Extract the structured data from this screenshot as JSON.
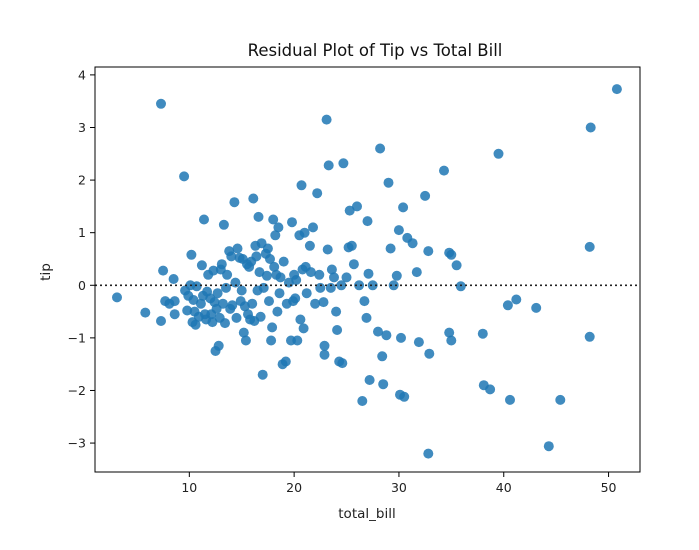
{
  "chart_data": {
    "type": "scatter",
    "title": "Residual Plot of Tip vs Total Bill",
    "xlabel": "total_bill",
    "ylabel": "tip",
    "xlim": [
      1.0,
      53.0
    ],
    "ylim": [
      -3.55,
      4.15
    ],
    "xticks": [
      10,
      20,
      30,
      40,
      50
    ],
    "yticks": [
      -3,
      -2,
      -1,
      0,
      1,
      2,
      3,
      4
    ],
    "reference_line": {
      "y": 0,
      "style": "dotted",
      "color": "#222222"
    },
    "grid": false,
    "marker_color": "#1f77b4",
    "points": [
      [
        3.1,
        -0.23
      ],
      [
        5.8,
        -0.52
      ],
      [
        7.3,
        3.45
      ],
      [
        7.3,
        -0.68
      ],
      [
        7.5,
        0.28
      ],
      [
        7.7,
        -0.3
      ],
      [
        8.1,
        -0.35
      ],
      [
        8.5,
        0.12
      ],
      [
        8.6,
        -0.3
      ],
      [
        8.6,
        -0.55
      ],
      [
        9.5,
        2.07
      ],
      [
        9.6,
        -0.1
      ],
      [
        9.8,
        -0.48
      ],
      [
        9.9,
        -0.2
      ],
      [
        10.1,
        0.0
      ],
      [
        10.2,
        0.58
      ],
      [
        10.3,
        -0.7
      ],
      [
        10.4,
        -0.28
      ],
      [
        10.5,
        -0.5
      ],
      [
        10.6,
        -0.75
      ],
      [
        10.7,
        -0.02
      ],
      [
        10.9,
        -0.6
      ],
      [
        11.1,
        -0.35
      ],
      [
        11.2,
        0.38
      ],
      [
        11.3,
        -0.2
      ],
      [
        11.4,
        1.25
      ],
      [
        11.5,
        -0.55
      ],
      [
        11.6,
        -0.65
      ],
      [
        11.7,
        -0.12
      ],
      [
        11.8,
        0.2
      ],
      [
        12.0,
        -0.25
      ],
      [
        12.1,
        -0.55
      ],
      [
        12.2,
        -0.7
      ],
      [
        12.3,
        0.28
      ],
      [
        12.4,
        -0.32
      ],
      [
        12.5,
        -1.25
      ],
      [
        12.6,
        -0.45
      ],
      [
        12.7,
        -0.15
      ],
      [
        12.8,
        -1.15
      ],
      [
        12.9,
        -0.62
      ],
      [
        13.0,
        0.3
      ],
      [
        13.1,
        0.4
      ],
      [
        13.2,
        -0.35
      ],
      [
        13.3,
        1.15
      ],
      [
        13.4,
        -0.72
      ],
      [
        13.5,
        -0.05
      ],
      [
        13.6,
        0.2
      ],
      [
        13.8,
        0.65
      ],
      [
        13.9,
        -0.45
      ],
      [
        14.0,
        0.55
      ],
      [
        14.1,
        -0.38
      ],
      [
        14.3,
        1.58
      ],
      [
        14.4,
        0.05
      ],
      [
        14.5,
        -0.62
      ],
      [
        14.6,
        0.7
      ],
      [
        14.8,
        0.52
      ],
      [
        14.9,
        -0.3
      ],
      [
        15.0,
        -0.1
      ],
      [
        15.1,
        0.5
      ],
      [
        15.2,
        -0.9
      ],
      [
        15.3,
        -0.4
      ],
      [
        15.4,
        -1.05
      ],
      [
        15.5,
        0.4
      ],
      [
        15.6,
        -0.55
      ],
      [
        15.7,
        0.35
      ],
      [
        15.8,
        -0.65
      ],
      [
        15.9,
        0.45
      ],
      [
        16.0,
        -0.35
      ],
      [
        16.1,
        1.65
      ],
      [
        16.2,
        -0.68
      ],
      [
        16.3,
        0.75
      ],
      [
        16.4,
        0.55
      ],
      [
        16.5,
        -0.1
      ],
      [
        16.6,
        1.3
      ],
      [
        16.7,
        0.25
      ],
      [
        16.8,
        -0.6
      ],
      [
        16.9,
        0.8
      ],
      [
        17.0,
        -1.7
      ],
      [
        17.1,
        -0.05
      ],
      [
        17.3,
        0.6
      ],
      [
        17.4,
        0.18
      ],
      [
        17.5,
        0.7
      ],
      [
        17.6,
        -0.3
      ],
      [
        17.7,
        0.5
      ],
      [
        17.8,
        -1.05
      ],
      [
        17.9,
        -0.8
      ],
      [
        18.0,
        1.25
      ],
      [
        18.1,
        0.35
      ],
      [
        18.2,
        0.95
      ],
      [
        18.3,
        0.2
      ],
      [
        18.4,
        -0.5
      ],
      [
        18.5,
        1.1
      ],
      [
        18.6,
        -0.15
      ],
      [
        18.7,
        0.15
      ],
      [
        18.9,
        -1.5
      ],
      [
        19.0,
        0.45
      ],
      [
        19.2,
        -1.45
      ],
      [
        19.3,
        -0.35
      ],
      [
        19.5,
        0.05
      ],
      [
        19.7,
        -1.05
      ],
      [
        19.8,
        1.2
      ],
      [
        19.9,
        -0.3
      ],
      [
        20.0,
        0.2
      ],
      [
        20.1,
        -0.25
      ],
      [
        20.2,
        0.1
      ],
      [
        20.3,
        -1.05
      ],
      [
        20.5,
        0.95
      ],
      [
        20.6,
        -0.65
      ],
      [
        20.7,
        1.9
      ],
      [
        20.8,
        0.3
      ],
      [
        20.9,
        -0.82
      ],
      [
        21.0,
        1.0
      ],
      [
        21.1,
        0.35
      ],
      [
        21.2,
        -0.15
      ],
      [
        21.5,
        0.75
      ],
      [
        21.6,
        0.25
      ],
      [
        21.8,
        1.1
      ],
      [
        22.0,
        -0.35
      ],
      [
        22.2,
        1.75
      ],
      [
        22.4,
        0.2
      ],
      [
        22.5,
        -0.05
      ],
      [
        22.8,
        -0.32
      ],
      [
        22.9,
        -1.15
      ],
      [
        22.9,
        -1.32
      ],
      [
        23.1,
        3.15
      ],
      [
        23.2,
        0.68
      ],
      [
        23.3,
        2.28
      ],
      [
        23.5,
        -0.05
      ],
      [
        23.6,
        0.3
      ],
      [
        23.8,
        0.15
      ],
      [
        24.0,
        -0.5
      ],
      [
        24.1,
        -0.85
      ],
      [
        24.3,
        -1.45
      ],
      [
        24.5,
        0.0
      ],
      [
        24.6,
        -1.48
      ],
      [
        24.7,
        2.32
      ],
      [
        25.0,
        0.15
      ],
      [
        25.2,
        0.72
      ],
      [
        25.3,
        1.42
      ],
      [
        25.5,
        0.75
      ],
      [
        25.7,
        0.4
      ],
      [
        26.0,
        1.5
      ],
      [
        26.2,
        0.0
      ],
      [
        26.5,
        -2.2
      ],
      [
        26.7,
        -0.3
      ],
      [
        26.9,
        -0.62
      ],
      [
        27.0,
        1.22
      ],
      [
        27.1,
        0.22
      ],
      [
        27.2,
        -1.8
      ],
      [
        27.5,
        0.0
      ],
      [
        28.0,
        -0.88
      ],
      [
        28.2,
        2.6
      ],
      [
        28.4,
        -1.35
      ],
      [
        28.5,
        -1.88
      ],
      [
        28.8,
        -0.95
      ],
      [
        29.0,
        1.95
      ],
      [
        29.2,
        0.7
      ],
      [
        29.5,
        0.0
      ],
      [
        29.8,
        0.18
      ],
      [
        30.0,
        1.05
      ],
      [
        30.1,
        -2.08
      ],
      [
        30.2,
        -1.0
      ],
      [
        30.4,
        1.48
      ],
      [
        30.5,
        -2.12
      ],
      [
        30.8,
        0.9
      ],
      [
        31.3,
        0.8
      ],
      [
        31.7,
        0.25
      ],
      [
        31.9,
        -1.08
      ],
      [
        32.5,
        1.7
      ],
      [
        32.8,
        0.65
      ],
      [
        32.9,
        -1.3
      ],
      [
        32.8,
        -3.2
      ],
      [
        34.3,
        2.18
      ],
      [
        34.8,
        0.62
      ],
      [
        34.8,
        -0.9
      ],
      [
        35.0,
        -1.05
      ],
      [
        35.0,
        0.58
      ],
      [
        35.5,
        0.38
      ],
      [
        35.9,
        -0.02
      ],
      [
        38.0,
        -0.92
      ],
      [
        38.1,
        -1.9
      ],
      [
        38.7,
        -1.98
      ],
      [
        39.5,
        2.5
      ],
      [
        40.4,
        -0.38
      ],
      [
        40.6,
        -2.18
      ],
      [
        41.2,
        -0.27
      ],
      [
        43.1,
        -0.43
      ],
      [
        44.3,
        -3.06
      ],
      [
        45.4,
        -2.18
      ],
      [
        48.2,
        0.73
      ],
      [
        48.3,
        3.0
      ],
      [
        48.2,
        -0.98
      ],
      [
        50.8,
        3.73
      ]
    ]
  }
}
